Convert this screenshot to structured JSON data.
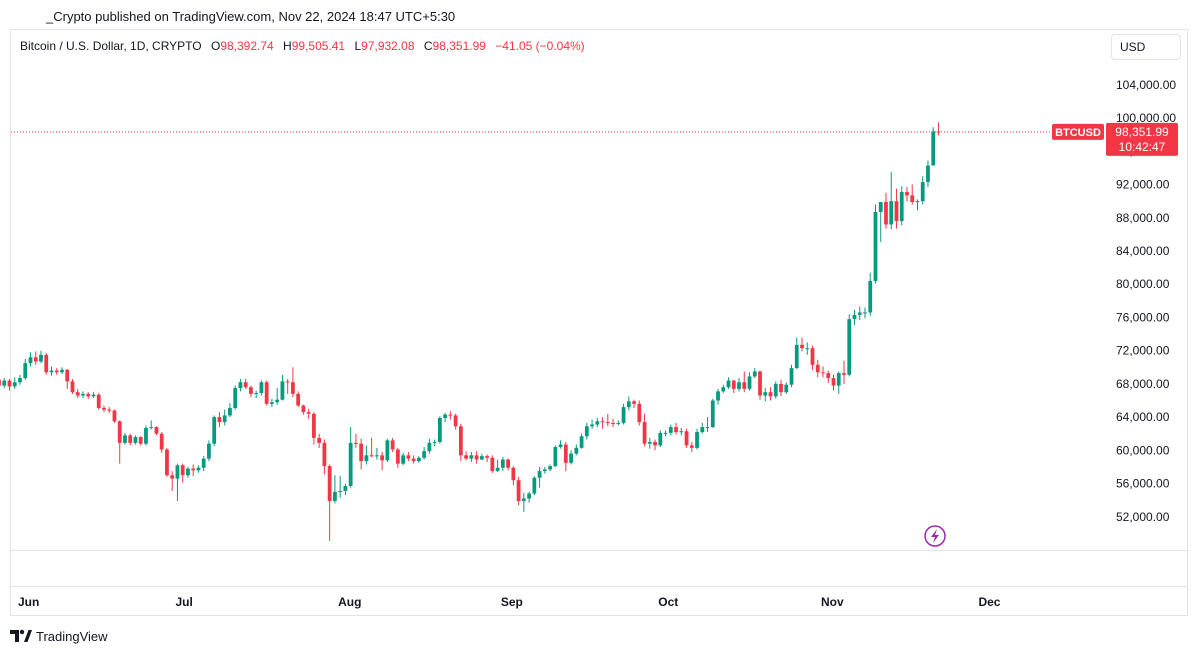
{
  "header": {
    "published": "_Crypto published on TradingView.com, Nov 22, 2024 18:47 UTC+5:30"
  },
  "legend": {
    "symbol": "Bitcoin / U.S. Dollar, 1D, CRYPTO",
    "open_label": "O",
    "open": "98,392.74",
    "high_label": "H",
    "high": "99,505.41",
    "low_label": "L",
    "low": "97,932.08",
    "close_label": "C",
    "close": "98,351.99",
    "change": "−41.05 (−0.04%)"
  },
  "currency": "USD",
  "price_label": {
    "ticker": "BTCUSD",
    "price": "98,351.99",
    "countdown": "10:42:47"
  },
  "brand": {
    "name": "TradingView",
    "logo": "tradingview-logo"
  },
  "colors": {
    "up": "#089981",
    "down": "#f23645",
    "last_price_line": "#f23645"
  },
  "icons": {
    "replay": "lightning-icon"
  },
  "chart_data": {
    "type": "candlestick",
    "title": "Bitcoin / U.S. Dollar, 1D, CRYPTO",
    "ylim": [
      48000,
      107000
    ],
    "y_ticks": [
      "52,000.00",
      "56,000.00",
      "60,000.00",
      "64,000.00",
      "68,000.00",
      "72,000.00",
      "76,000.00",
      "80,000.00",
      "84,000.00",
      "88,000.00",
      "92,000.00",
      "96,000.00",
      "100,000.00",
      "104,000.00"
    ],
    "x_ticks": [
      {
        "label": "Jun",
        "date": "2024-06-01"
      },
      {
        "label": "Jul",
        "date": "2024-07-01"
      },
      {
        "label": "Aug",
        "date": "2024-08-01"
      },
      {
        "label": "Sep",
        "date": "2024-09-01"
      },
      {
        "label": "Oct",
        "date": "2024-10-01"
      },
      {
        "label": "Nov",
        "date": "2024-11-01"
      },
      {
        "label": "Dec",
        "date": "2024-12-01"
      }
    ],
    "last_price": 98351.99,
    "start_date": "2024-05-25",
    "candles": [
      [
        69000,
        68500,
        69300,
        68000
      ],
      [
        68500,
        67900,
        69000,
        67400
      ],
      [
        67900,
        68500,
        68900,
        67500
      ],
      [
        68500,
        67800,
        68900,
        67300
      ],
      [
        67800,
        68400,
        68700,
        67500
      ],
      [
        68400,
        67700,
        68600,
        67200
      ],
      [
        67700,
        68200,
        68800,
        67400
      ],
      [
        68200,
        68700,
        69100,
        67900
      ],
      [
        68700,
        70500,
        71000,
        68500
      ],
      [
        70500,
        71200,
        71800,
        70100
      ],
      [
        71200,
        70700,
        71900,
        70300
      ],
      [
        70700,
        71500,
        72000,
        70500
      ],
      [
        71500,
        69400,
        71700,
        69100
      ],
      [
        69400,
        69600,
        70100,
        69000
      ],
      [
        69600,
        69400,
        69900,
        69100
      ],
      [
        69400,
        69700,
        70000,
        69200
      ],
      [
        69700,
        68300,
        69800,
        67400
      ],
      [
        68300,
        67000,
        68600,
        66800
      ],
      [
        67000,
        66600,
        67400,
        66300
      ],
      [
        66600,
        66800,
        67100,
        66300
      ],
      [
        66800,
        66500,
        67000,
        66200
      ],
      [
        66500,
        66700,
        67000,
        66300
      ],
      [
        66700,
        65100,
        66900,
        64900
      ],
      [
        65100,
        64900,
        65400,
        64600
      ],
      [
        64900,
        64800,
        65200,
        64500
      ],
      [
        64800,
        63500,
        64900,
        63300
      ],
      [
        63500,
        60900,
        63600,
        58400
      ],
      [
        60900,
        61800,
        62100,
        60700
      ],
      [
        61800,
        60900,
        62000,
        60600
      ],
      [
        60900,
        61600,
        61800,
        60700
      ],
      [
        61600,
        60800,
        61700,
        60600
      ],
      [
        60800,
        62700,
        63000,
        60600
      ],
      [
        62700,
        62800,
        63600,
        62500
      ],
      [
        62800,
        62000,
        62900,
        61800
      ],
      [
        62000,
        60100,
        62200,
        59700
      ],
      [
        60100,
        57000,
        60300,
        56800
      ],
      [
        57000,
        56600,
        57500,
        55100
      ],
      [
        56600,
        58200,
        58400,
        53900
      ],
      [
        58200,
        57000,
        58400,
        56100
      ],
      [
        57000,
        57800,
        58000,
        56700
      ],
      [
        57800,
        57600,
        58300,
        56900
      ],
      [
        57600,
        57900,
        58200,
        57300
      ],
      [
        57900,
        59000,
        59300,
        57500
      ],
      [
        59000,
        60800,
        61200,
        58700
      ],
      [
        60800,
        64000,
        64200,
        60500
      ],
      [
        64000,
        63400,
        64600,
        62800
      ],
      [
        63400,
        64200,
        64900,
        63000
      ],
      [
        64200,
        65100,
        65700,
        64000
      ],
      [
        65100,
        67500,
        67800,
        64900
      ],
      [
        67500,
        68200,
        68600,
        67100
      ],
      [
        68200,
        67600,
        68600,
        67400
      ],
      [
        67600,
        66800,
        67800,
        66400
      ],
      [
        66800,
        66900,
        67200,
        66300
      ],
      [
        66900,
        68200,
        68400,
        66600
      ],
      [
        68200,
        65600,
        68400,
        65400
      ],
      [
        65600,
        65800,
        66200,
        65200
      ],
      [
        65800,
        66100,
        67500,
        65500
      ],
      [
        66100,
        68300,
        69100,
        66000
      ],
      [
        68300,
        68200,
        68600,
        66800
      ],
      [
        68200,
        66800,
        70000,
        66400
      ],
      [
        66800,
        65400,
        67100,
        65200
      ],
      [
        65400,
        64600,
        65500,
        64300
      ],
      [
        64600,
        64400,
        65000,
        63800
      ],
      [
        64400,
        61500,
        64600,
        60700
      ],
      [
        61500,
        60900,
        62000,
        60300
      ],
      [
        60900,
        58100,
        61300,
        57100
      ],
      [
        58100,
        53900,
        58300,
        49100
      ],
      [
        53900,
        55000,
        57000,
        53600
      ],
      [
        55000,
        55100,
        56900,
        54300
      ],
      [
        55100,
        55700,
        56000,
        54600
      ],
      [
        55700,
        60900,
        62800,
        55500
      ],
      [
        60900,
        60800,
        62000,
        60300
      ],
      [
        60800,
        58700,
        61400,
        57700
      ],
      [
        58700,
        59400,
        60600,
        58300
      ],
      [
        59400,
        59300,
        61500,
        59200
      ],
      [
        59300,
        59400,
        60300,
        58900
      ],
      [
        59400,
        58800,
        59800,
        57600
      ],
      [
        58800,
        61200,
        61400,
        58600
      ],
      [
        61200,
        60100,
        61500,
        59800
      ],
      [
        60100,
        58400,
        60300,
        57900
      ],
      [
        58400,
        59400,
        59700,
        58200
      ],
      [
        59400,
        59000,
        59800,
        58700
      ],
      [
        59000,
        58700,
        59400,
        58400
      ],
      [
        58700,
        59100,
        59300,
        58500
      ],
      [
        59100,
        59900,
        60400,
        58900
      ],
      [
        59900,
        60900,
        61400,
        59600
      ],
      [
        60900,
        61000,
        61300,
        60500
      ],
      [
        61000,
        63900,
        64100,
        60800
      ],
      [
        63900,
        64300,
        64500,
        63400
      ],
      [
        64300,
        64200,
        64700,
        63700
      ],
      [
        64200,
        62900,
        64400,
        62500
      ],
      [
        62900,
        59400,
        63200,
        58700
      ],
      [
        59400,
        59000,
        59900,
        58800
      ],
      [
        59000,
        59400,
        59800,
        58600
      ],
      [
        59400,
        58900,
        59900,
        58400
      ],
      [
        58900,
        59300,
        59600,
        58800
      ],
      [
        59300,
        59100,
        59500,
        58600
      ],
      [
        59100,
        57500,
        59400,
        57300
      ],
      [
        57500,
        57900,
        58900,
        57400
      ],
      [
        57900,
        58900,
        59200,
        57500
      ],
      [
        58900,
        57900,
        59000,
        57600
      ],
      [
        57900,
        56400,
        58100,
        55800
      ],
      [
        56400,
        53900,
        56800,
        53400
      ],
      [
        53900,
        54200,
        54900,
        52600
      ],
      [
        54200,
        54800,
        55000,
        53700
      ],
      [
        54800,
        56700,
        56900,
        54600
      ],
      [
        56700,
        57500,
        58000,
        55500
      ],
      [
        57500,
        57700,
        58000,
        57200
      ],
      [
        57700,
        58100,
        58300,
        57500
      ],
      [
        58100,
        60400,
        60600,
        58000
      ],
      [
        60400,
        60700,
        61200,
        60200
      ],
      [
        60700,
        58500,
        61000,
        57500
      ],
      [
        58500,
        59600,
        60000,
        58300
      ],
      [
        59600,
        60300,
        60700,
        59400
      ],
      [
        60300,
        61700,
        62000,
        60200
      ],
      [
        61700,
        62900,
        63300,
        61300
      ],
      [
        62900,
        63100,
        63700,
        62600
      ],
      [
        63100,
        63500,
        63900,
        62800
      ],
      [
        63500,
        63400,
        64000,
        62600
      ],
      [
        63400,
        63300,
        64400,
        62900
      ],
      [
        63300,
        63200,
        63800,
        62800
      ],
      [
        63200,
        63300,
        63600,
        63000
      ],
      [
        63300,
        65200,
        65600,
        63100
      ],
      [
        65200,
        65900,
        66500,
        64800
      ],
      [
        65900,
        65600,
        66100,
        65100
      ],
      [
        65600,
        63400,
        66000,
        63000
      ],
      [
        63400,
        60800,
        64400,
        60500
      ],
      [
        60800,
        61000,
        61500,
        60200
      ],
      [
        61000,
        60600,
        61300,
        60000
      ],
      [
        60600,
        62100,
        62400,
        60400
      ],
      [
        62100,
        62100,
        62400,
        61700
      ],
      [
        62100,
        62800,
        63100,
        61800
      ],
      [
        62800,
        62200,
        63300,
        61900
      ],
      [
        62200,
        62300,
        62700,
        61800
      ],
      [
        62300,
        60600,
        62600,
        60300
      ],
      [
        60600,
        60300,
        61000,
        59800
      ],
      [
        60300,
        62200,
        62600,
        60100
      ],
      [
        62200,
        62800,
        63300,
        62000
      ],
      [
        62800,
        62800,
        64000,
        62200
      ],
      [
        62800,
        66000,
        66200,
        62700
      ],
      [
        66000,
        67100,
        67400,
        65500
      ],
      [
        67100,
        67600,
        67900,
        66900
      ],
      [
        67600,
        68400,
        68800,
        67400
      ],
      [
        68400,
        67400,
        68500,
        66900
      ],
      [
        67400,
        68200,
        68700,
        67100
      ],
      [
        68200,
        67400,
        69500,
        67000
      ],
      [
        67400,
        68900,
        69400,
        67200
      ],
      [
        68900,
        69500,
        69900,
        68700
      ],
      [
        69500,
        66600,
        69600,
        66100
      ],
      [
        66600,
        67000,
        67500,
        65900
      ],
      [
        67000,
        66500,
        67600,
        66000
      ],
      [
        66500,
        68000,
        68300,
        66200
      ],
      [
        68000,
        67000,
        68500,
        66500
      ],
      [
        67000,
        67900,
        68200,
        66800
      ],
      [
        67900,
        69900,
        70300,
        67600
      ],
      [
        69900,
        72700,
        73600,
        69800
      ],
      [
        72700,
        72300,
        73600,
        71900
      ],
      [
        72300,
        72300,
        73000,
        71500
      ],
      [
        72300,
        70300,
        72600,
        69700
      ],
      [
        70300,
        69400,
        70900,
        68800
      ],
      [
        69400,
        69300,
        70100,
        68800
      ],
      [
        69300,
        68700,
        69600,
        68100
      ],
      [
        68700,
        67800,
        69100,
        67200
      ],
      [
        67800,
        69300,
        69500,
        66800
      ],
      [
        69300,
        69100,
        70800,
        68000
      ],
      [
        69100,
        75800,
        76400,
        68900
      ],
      [
        75800,
        76300,
        76900,
        75100
      ],
      [
        76300,
        76600,
        77300,
        75700
      ],
      [
        76600,
        76600,
        77200,
        75900
      ],
      [
        76600,
        80400,
        81400,
        76200
      ],
      [
        80400,
        88700,
        89600,
        80100
      ],
      [
        88700,
        89900,
        89900,
        85100
      ],
      [
        89900,
        87200,
        91000,
        86700
      ],
      [
        87200,
        90000,
        93500,
        86600
      ],
      [
        90000,
        87600,
        91500,
        86700
      ],
      [
        87600,
        91100,
        91800,
        87100
      ],
      [
        91100,
        90700,
        91700,
        90000
      ],
      [
        90700,
        89900,
        92000,
        89600
      ],
      [
        89900,
        90000,
        90200,
        88900
      ],
      [
        90000,
        92300,
        93000,
        89600
      ],
      [
        92300,
        94300,
        94900,
        91700
      ],
      [
        94300,
        98400,
        98900,
        94300
      ],
      [
        98392.74,
        98351.99,
        99505.41,
        97932.08
      ]
    ]
  }
}
